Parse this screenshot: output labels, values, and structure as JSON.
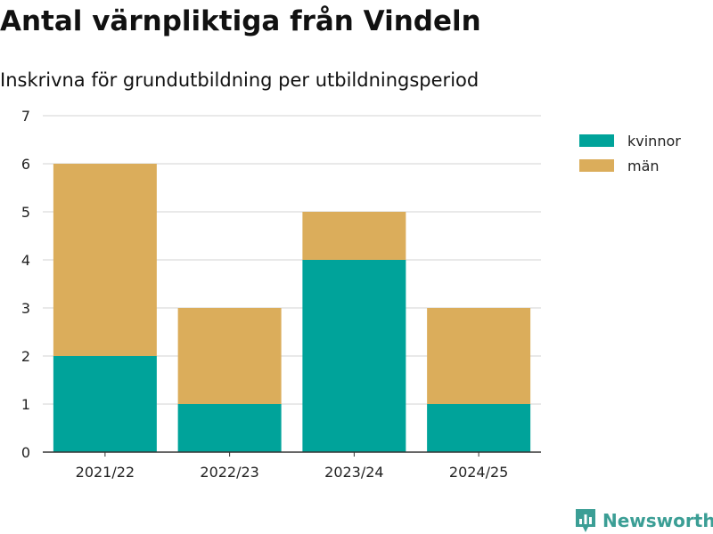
{
  "header": {
    "title": "Antal värnpliktiga från Vindeln",
    "subtitle": "Inskrivna för grundutbildning per utbildningsperiod"
  },
  "brand": {
    "name": "Newsworthy",
    "color": "#3b9e95",
    "icon": "bar-chart-badge-icon"
  },
  "chart_data": {
    "type": "bar",
    "stacked": true,
    "title": "Antal värnpliktiga från Vindeln",
    "subtitle": "Inskrivna för grundutbildning per utbildningsperiod",
    "xlabel": "",
    "ylabel": "",
    "categories": [
      "2021/22",
      "2022/23",
      "2023/24",
      "2024/25"
    ],
    "series": [
      {
        "name": "kvinnor",
        "values": [
          2,
          1,
          4,
          1
        ],
        "color": "#00a39a"
      },
      {
        "name": "män",
        "values": [
          4,
          2,
          1,
          2
        ],
        "color": "#dbad5b"
      }
    ],
    "ylim": [
      0,
      7
    ],
    "yticks": [
      0,
      1,
      2,
      3,
      4,
      5,
      6,
      7
    ],
    "grid": true,
    "legend_position": "top-right"
  }
}
